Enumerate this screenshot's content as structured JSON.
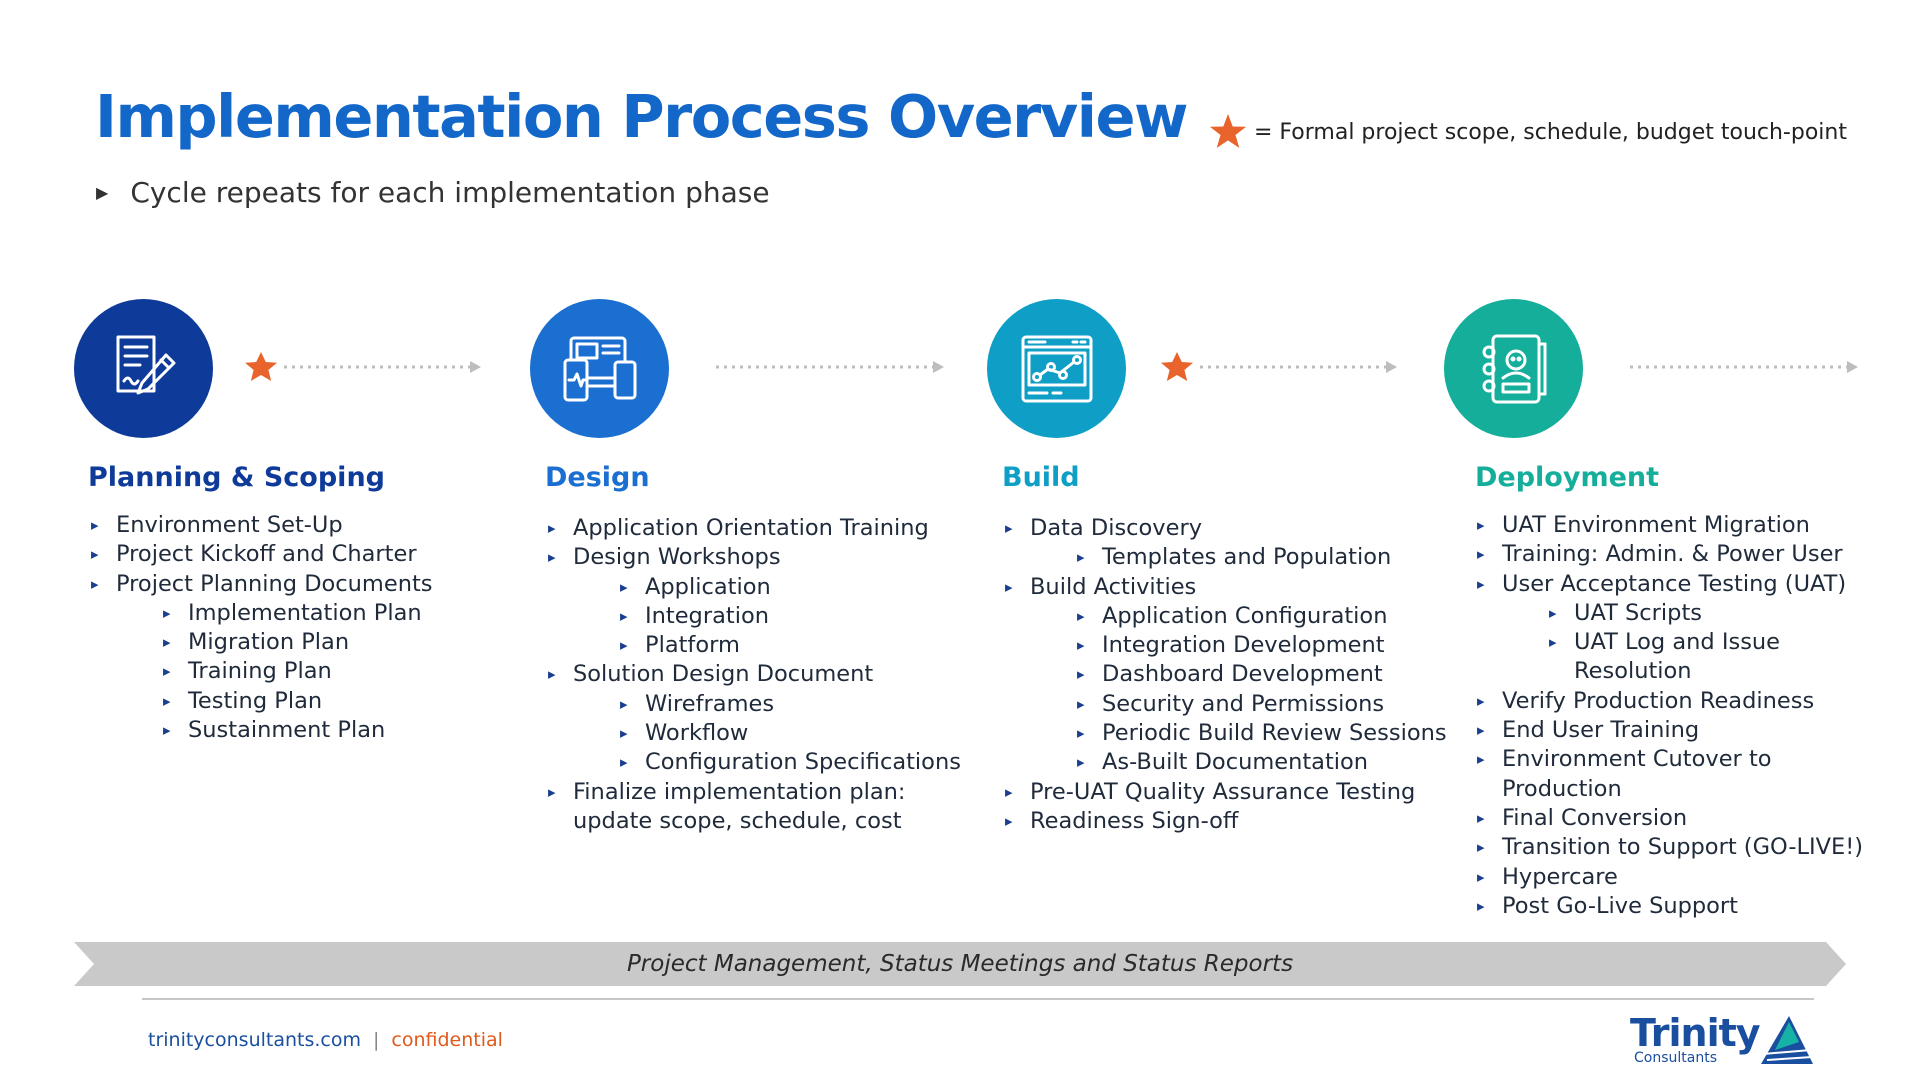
{
  "header": {
    "title": "Implementation Process Overview",
    "subtitle": "Cycle repeats for each implementation phase",
    "legend_text": "= Formal project scope, schedule, budget touch-point",
    "star_color": "#e8642c"
  },
  "phases": [
    {
      "title": "Planning & Scoping",
      "color": "#0e3a9a",
      "icon": "document-pen-icon",
      "touchpoint": true,
      "items": [
        {
          "text": "Environment Set-Up",
          "level": 1
        },
        {
          "text": "Project Kickoff and Charter",
          "level": 1
        },
        {
          "text": "Project Planning Documents",
          "level": 1
        },
        {
          "text": "Implementation Plan",
          "level": 2
        },
        {
          "text": "Migration Plan",
          "level": 2
        },
        {
          "text": "Training Plan",
          "level": 2
        },
        {
          "text": "Testing Plan",
          "level": 2
        },
        {
          "text": "Sustainment Plan",
          "level": 2
        }
      ]
    },
    {
      "title": "Design",
      "color": "#1a6fd0",
      "icon": "devices-icon",
      "touchpoint": false,
      "items": [
        {
          "text": "Application Orientation Training",
          "level": 1
        },
        {
          "text": "Design Workshops",
          "level": 1
        },
        {
          "text": "Application",
          "level": 2
        },
        {
          "text": "Integration",
          "level": 2
        },
        {
          "text": "Platform",
          "level": 2
        },
        {
          "text": "Solution Design Document",
          "level": 1
        },
        {
          "text": "Wireframes",
          "level": 2
        },
        {
          "text": "Workflow",
          "level": 2
        },
        {
          "text": "Configuration Specifications",
          "level": 2
        },
        {
          "text": "Finalize implementation plan:",
          "level": 1
        },
        {
          "text": "update scope, schedule, cost",
          "level": 1,
          "cont": true
        }
      ]
    },
    {
      "title": "Build",
      "color": "#0f9ec6",
      "icon": "browser-chart-icon",
      "touchpoint": true,
      "items": [
        {
          "text": "Data Discovery",
          "level": 1
        },
        {
          "text": "Templates and Population",
          "level": 2
        },
        {
          "text": "Build Activities",
          "level": 1
        },
        {
          "text": "Application Configuration",
          "level": 2
        },
        {
          "text": "Integration Development",
          "level": 2
        },
        {
          "text": "Dashboard Development",
          "level": 2
        },
        {
          "text": "Security and Permissions",
          "level": 2
        },
        {
          "text": "Periodic Build Review Sessions",
          "level": 2
        },
        {
          "text": "As-Built Documentation",
          "level": 2
        },
        {
          "text": "Pre-UAT Quality Assurance Testing",
          "level": 1
        },
        {
          "text": "Readiness Sign-off",
          "level": 1
        }
      ]
    },
    {
      "title": "Deployment",
      "color": "#14ae9b",
      "icon": "address-book-icon",
      "touchpoint": false,
      "items": [
        {
          "text": "UAT Environment Migration",
          "level": 1
        },
        {
          "text": "Training: Admin. & Power User",
          "level": 1
        },
        {
          "text": "User Acceptance Testing (UAT)",
          "level": 1
        },
        {
          "text": "UAT Scripts",
          "level": 2
        },
        {
          "text": "UAT Log and Issue",
          "level": 2
        },
        {
          "text": "Resolution",
          "level": 2,
          "cont": true
        },
        {
          "text": "Verify Production Readiness",
          "level": 1
        },
        {
          "text": "End User Training",
          "level": 1
        },
        {
          "text": "Environment Cutover to",
          "level": 1
        },
        {
          "text": "Production",
          "level": 1,
          "cont": true
        },
        {
          "text": "Final Conversion",
          "level": 1
        },
        {
          "text": "Transition to Support (GO-LIVE!)",
          "level": 1
        },
        {
          "text": "Hypercare",
          "level": 1
        },
        {
          "text": "Post Go-Live Support",
          "level": 1
        }
      ]
    }
  ],
  "band": {
    "label": "Project Management, Status Meetings and Status Reports"
  },
  "footer": {
    "site": "trinityconsultants.com",
    "separator": "|",
    "confidential": "confidential"
  },
  "logo": {
    "brand": "Trinity",
    "tagline": "Consultants"
  }
}
